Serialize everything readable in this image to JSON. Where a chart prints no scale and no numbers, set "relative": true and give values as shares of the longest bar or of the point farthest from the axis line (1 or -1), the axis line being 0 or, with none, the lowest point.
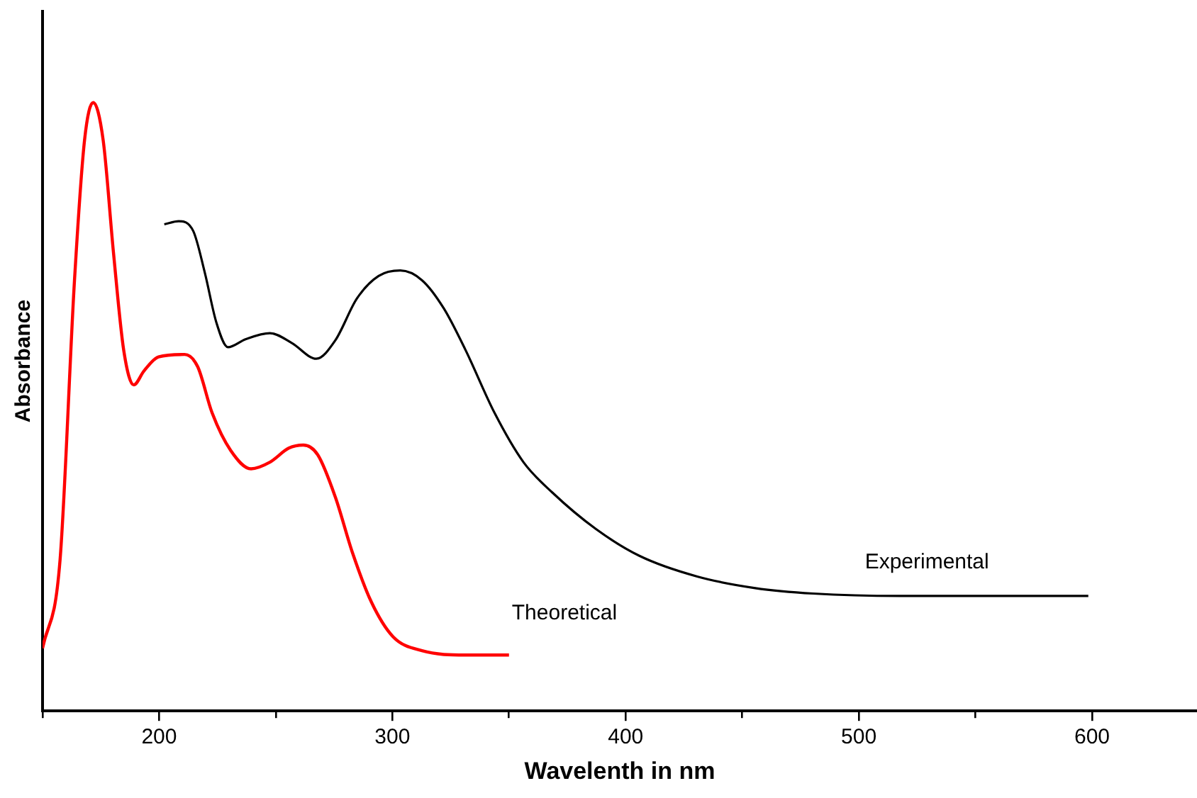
{
  "chart_data": {
    "type": "line",
    "relative": true,
    "xlabel": "Wavelenth in nm",
    "ylabel": "Absorbance",
    "xlim": [
      150,
      645
    ],
    "xticks": [
      {
        "value": 150,
        "label": null
      },
      200,
      {
        "value": 250,
        "label": null
      },
      300,
      {
        "value": 350,
        "label": null
      },
      400,
      {
        "value": 450,
        "label": null
      },
      500,
      {
        "value": 550,
        "label": null
      },
      600
    ],
    "grid": false,
    "legend": false,
    "marker": "none",
    "line_style": "solid",
    "series": [
      {
        "name": "Experimental",
        "color": "#000000",
        "x": [
          202.2,
          208.4,
          214.6,
          219.6,
          224.5,
          229.5,
          237,
          247.5,
          256.8,
          267.4,
          275.5,
          284.8,
          294.1,
          303.4,
          312.7,
          322,
          331.4,
          343.8,
          356.2,
          368.6,
          387.3,
          405.9,
          430.7,
          455.6,
          480.4,
          517.7,
          555,
          598.4
        ],
        "values": [
          0.8,
          0.805,
          0.789,
          0.72,
          0.639,
          0.598,
          0.611,
          0.621,
          0.605,
          0.579,
          0.609,
          0.678,
          0.715,
          0.724,
          0.708,
          0.662,
          0.593,
          0.49,
          0.409,
          0.359,
          0.299,
          0.255,
          0.221,
          0.202,
          0.193,
          0.189,
          0.189,
          0.189
        ]
      },
      {
        "name": "Theoretical",
        "color": "#ff0000",
        "x": [
          150,
          157.5,
          163.7,
          168,
          171.7,
          176,
          180.4,
          184.8,
          189.1,
          193.5,
          199.7,
          210.9,
          216.5,
          222.7,
          230.7,
          239.4,
          247.5,
          255.6,
          261.8,
          268,
          275.5,
          282.9,
          291,
          300.3,
          312.7,
          331.4,
          350
        ],
        "values": [
          0.103,
          0.248,
          0.708,
          0.938,
          1,
          0.938,
          0.754,
          0.593,
          0.536,
          0.559,
          0.582,
          0.586,
          0.566,
          0.49,
          0.428,
          0.398,
          0.409,
          0.432,
          0.437,
          0.421,
          0.352,
          0.26,
          0.179,
          0.122,
          0.099,
          0.092,
          0.092
        ]
      }
    ]
  }
}
